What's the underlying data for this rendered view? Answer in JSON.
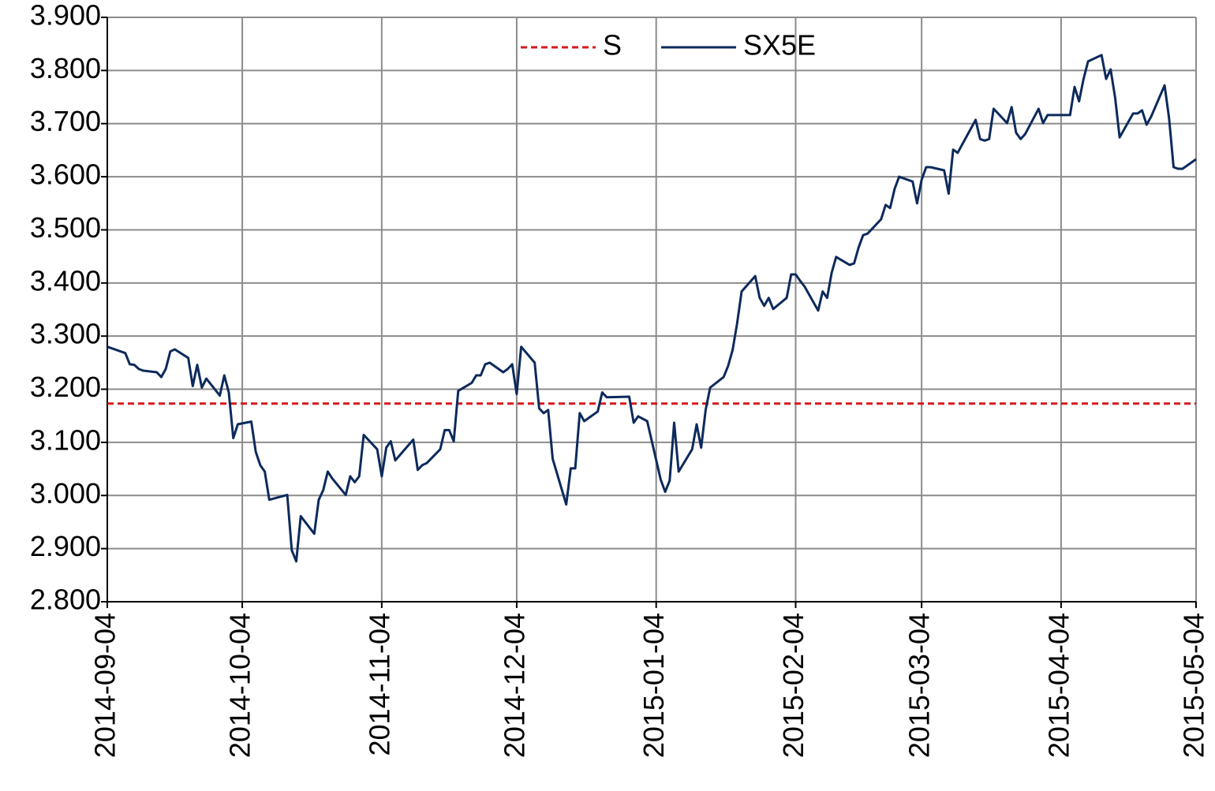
{
  "chart_data": {
    "type": "line",
    "legend": "top",
    "grid": true,
    "xlim": [
      "2014-09-04",
      "2015-05-04"
    ],
    "xticks": [
      "2014-09-04",
      "2014-10-04",
      "2014-11-04",
      "2014-12-04",
      "2015-01-04",
      "2015-02-04",
      "2015-03-04",
      "2015-04-04",
      "2015-05-04"
    ],
    "ylim": [
      2800,
      3900
    ],
    "yticks": [
      {
        "value": 2800,
        "label": "2.800"
      },
      {
        "value": 2900,
        "label": "2.900"
      },
      {
        "value": 3000,
        "label": "3.000"
      },
      {
        "value": 3100,
        "label": "3.100"
      },
      {
        "value": 3200,
        "label": "3.200"
      },
      {
        "value": 3300,
        "label": "3.300"
      },
      {
        "value": 3400,
        "label": "3.400"
      },
      {
        "value": 3500,
        "label": "3.500"
      },
      {
        "value": 3600,
        "label": "3.600"
      },
      {
        "value": 3700,
        "label": "3.700"
      },
      {
        "value": 3800,
        "label": "3.800"
      },
      {
        "value": 3900,
        "label": "3.900"
      }
    ],
    "series": [
      {
        "name": "S",
        "color": "#d7191c",
        "dashed": true,
        "x": [
          "2014-09-04",
          "2015-05-04"
        ],
        "values": [
          3173,
          3173
        ]
      },
      {
        "name": "SX5E",
        "color": "#0d2a5c",
        "dashed": false,
        "x": [
          "2014-09-04",
          "2014-09-08",
          "2014-09-09",
          "2014-09-10",
          "2014-09-11",
          "2014-09-12",
          "2014-09-15",
          "2014-09-16",
          "2014-09-17",
          "2014-09-18",
          "2014-09-19",
          "2014-09-22",
          "2014-09-23",
          "2014-09-24",
          "2014-09-25",
          "2014-09-26",
          "2014-09-29",
          "2014-09-30",
          "2014-10-01",
          "2014-10-02",
          "2014-10-03",
          "2014-10-06",
          "2014-10-07",
          "2014-10-08",
          "2014-10-09",
          "2014-10-10",
          "2014-10-14",
          "2014-10-15",
          "2014-10-16",
          "2014-10-17",
          "2014-10-20",
          "2014-10-21",
          "2014-10-22",
          "2014-10-23",
          "2014-10-24",
          "2014-10-27",
          "2014-10-28",
          "2014-10-29",
          "2014-10-30",
          "2014-10-31",
          "2014-11-03",
          "2014-11-04",
          "2014-11-05",
          "2014-11-06",
          "2014-11-07",
          "2014-11-11",
          "2014-11-12",
          "2014-11-13",
          "2014-11-14",
          "2014-11-17",
          "2014-11-18",
          "2014-11-19",
          "2014-11-20",
          "2014-11-21",
          "2014-11-24",
          "2014-11-25",
          "2014-11-26",
          "2014-11-27",
          "2014-11-28",
          "2014-12-01",
          "2014-12-02",
          "2014-12-03",
          "2014-12-04",
          "2014-12-05",
          "2014-12-08",
          "2014-12-09",
          "2014-12-10",
          "2014-12-11",
          "2014-12-12",
          "2014-12-15",
          "2014-12-16",
          "2014-12-17",
          "2014-12-18",
          "2014-12-19",
          "2014-12-22",
          "2014-12-23",
          "2014-12-24",
          "2014-12-29",
          "2014-12-30",
          "2014-12-31",
          "2015-01-02",
          "2015-01-05",
          "2015-01-06",
          "2015-01-07",
          "2015-01-08",
          "2015-01-09",
          "2015-01-12",
          "2015-01-13",
          "2015-01-14",
          "2015-01-15",
          "2015-01-16",
          "2015-01-19",
          "2015-01-20",
          "2015-01-21",
          "2015-01-22",
          "2015-01-23",
          "2015-01-26",
          "2015-01-27",
          "2015-01-28",
          "2015-01-29",
          "2015-01-30",
          "2015-02-02",
          "2015-02-03",
          "2015-02-04",
          "2015-02-05",
          "2015-02-06",
          "2015-02-09",
          "2015-02-10",
          "2015-02-11",
          "2015-02-12",
          "2015-02-13",
          "2015-02-16",
          "2015-02-17",
          "2015-02-18",
          "2015-02-19",
          "2015-02-20",
          "2015-02-23",
          "2015-02-24",
          "2015-02-25",
          "2015-02-26",
          "2015-02-27",
          "2015-03-02",
          "2015-03-03",
          "2015-03-04",
          "2015-03-05",
          "2015-03-06",
          "2015-03-09",
          "2015-03-10",
          "2015-03-11",
          "2015-03-12",
          "2015-03-16",
          "2015-03-17",
          "2015-03-18",
          "2015-03-19",
          "2015-03-20",
          "2015-03-23",
          "2015-03-24",
          "2015-03-25",
          "2015-03-26",
          "2015-03-27",
          "2015-03-30",
          "2015-03-31",
          "2015-04-01",
          "2015-04-02",
          "2015-04-06",
          "2015-04-07",
          "2015-04-08",
          "2015-04-09",
          "2015-04-10",
          "2015-04-13",
          "2015-04-14",
          "2015-04-15",
          "2015-04-16",
          "2015-04-17",
          "2015-04-20",
          "2015-04-21",
          "2015-04-22",
          "2015-04-23",
          "2015-04-24",
          "2015-04-27",
          "2015-04-28",
          "2015-04-29",
          "2015-04-30",
          "2015-05-01",
          "2015-05-04"
        ],
        "values": [
          3280,
          3268,
          3247,
          3246,
          3238,
          3235,
          3232,
          3223,
          3238,
          3271,
          3275,
          3259,
          3206,
          3246,
          3203,
          3220,
          3188,
          3226,
          3194,
          3108,
          3134,
          3139,
          3082,
          3057,
          3045,
          2992,
          3001,
          2897,
          2876,
          2961,
          2928,
          2992,
          3010,
          3045,
          3032,
          3001,
          3036,
          3025,
          3036,
          3114,
          3087,
          3036,
          3090,
          3102,
          3066,
          3105,
          3048,
          3057,
          3061,
          3087,
          3123,
          3123,
          3102,
          3197,
          3212,
          3226,
          3226,
          3247,
          3250,
          3232,
          3238,
          3247,
          3191,
          3280,
          3250,
          3164,
          3155,
          3161,
          3069,
          2983,
          3051,
          3051,
          3155,
          3140,
          3158,
          3194,
          3185,
          3186,
          3137,
          3149,
          3140,
          3030,
          3007,
          3028,
          3137,
          3045,
          3087,
          3134,
          3090,
          3161,
          3203,
          3223,
          3244,
          3274,
          3324,
          3384,
          3413,
          3372,
          3357,
          3372,
          3351,
          3372,
          3416,
          3416,
          3404,
          3393,
          3348,
          3384,
          3372,
          3419,
          3449,
          3434,
          3437,
          3467,
          3490,
          3493,
          3520,
          3547,
          3541,
          3577,
          3600,
          3591,
          3550,
          3594,
          3618,
          3618,
          3612,
          3568,
          3651,
          3645,
          3707,
          3671,
          3668,
          3671,
          3728,
          3701,
          3731,
          3683,
          3671,
          3680,
          3728,
          3701,
          3716,
          3716,
          3716,
          3769,
          3742,
          3784,
          3817,
          3829,
          3784,
          3802,
          3749,
          3674,
          3719,
          3719,
          3725,
          3698,
          3713,
          3772,
          3710,
          3618,
          3615,
          3615,
          3633
        ]
      }
    ]
  }
}
